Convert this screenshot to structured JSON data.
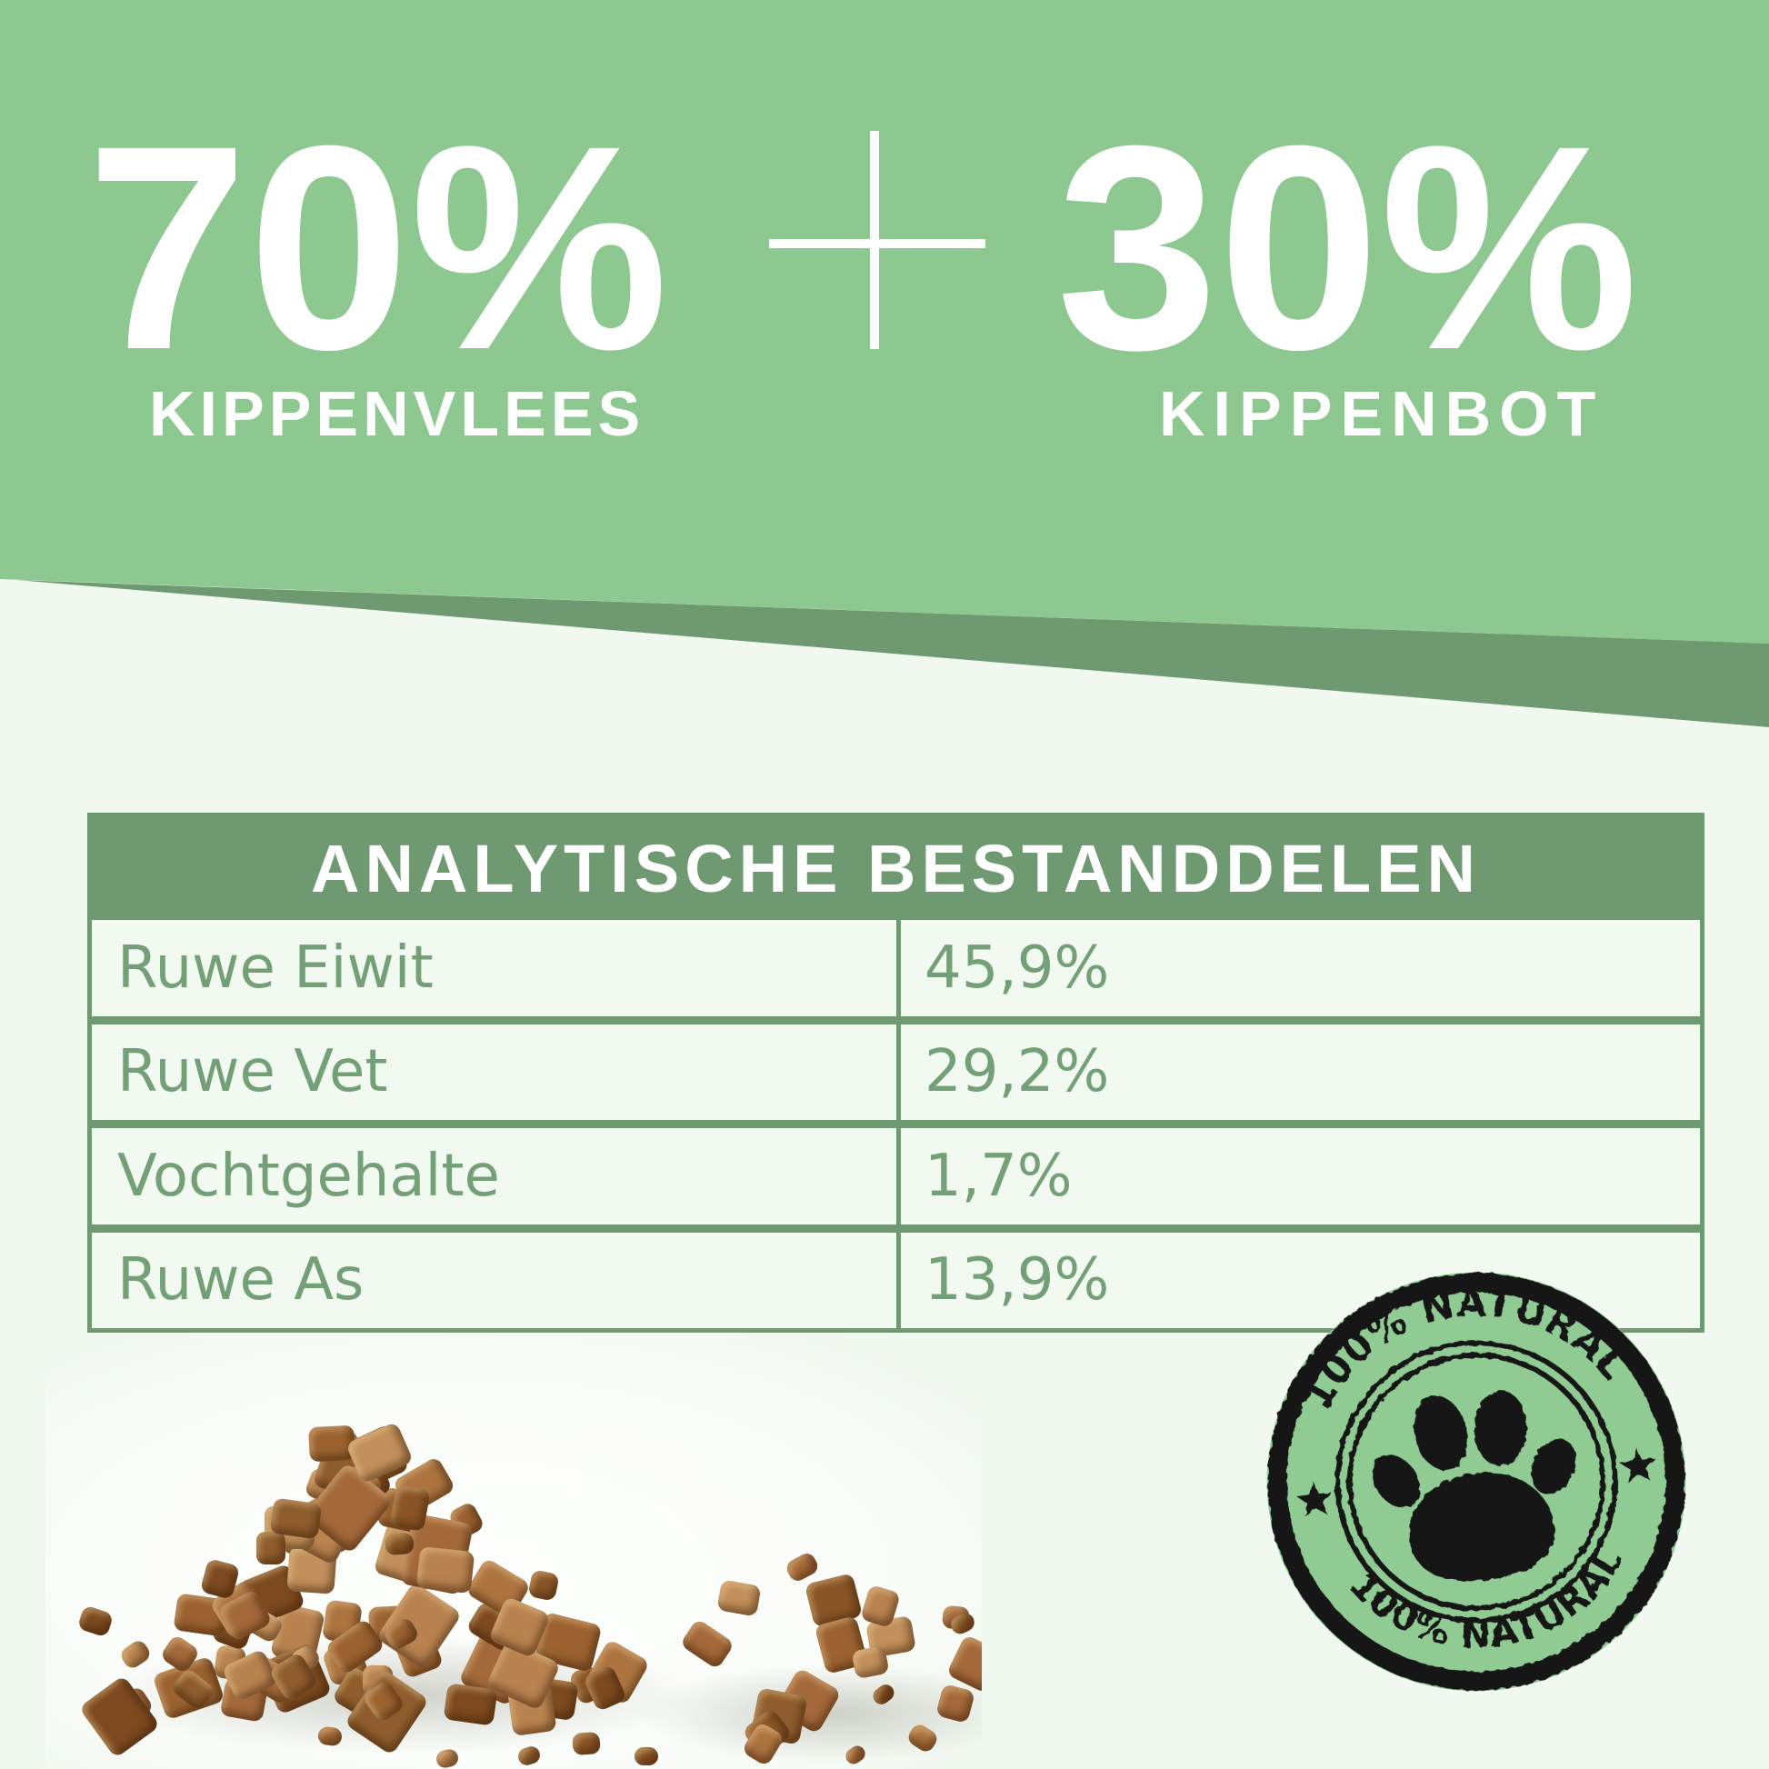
{
  "header": {
    "left_percent": "70%",
    "left_label": "KIPPENVLEES",
    "plus": "+",
    "right_percent": "30%",
    "right_label": "KIPPENBOT"
  },
  "table": {
    "title": "ANALYTISCHE BESTANDDELEN",
    "rows": [
      {
        "label": "Ruwe Eiwit",
        "value": "45,9%"
      },
      {
        "label": "Ruwe Vet",
        "value": "29,2%"
      },
      {
        "label": "Vochtgehalte",
        "value": "1,7%"
      },
      {
        "label": "Ruwe As",
        "value": "13,9%"
      }
    ]
  },
  "stamp": {
    "top_text": "100% NATURAL",
    "bottom_text": "100% NATURAL",
    "center_icon": "paw-icon"
  },
  "colors": {
    "header_green": "#8dc890",
    "dark_green": "#6f9a71",
    "background": "#f1f8f0",
    "table_text_green": "#73a077",
    "stamp_ink": "#141814",
    "headline_text": "#ffffff"
  }
}
